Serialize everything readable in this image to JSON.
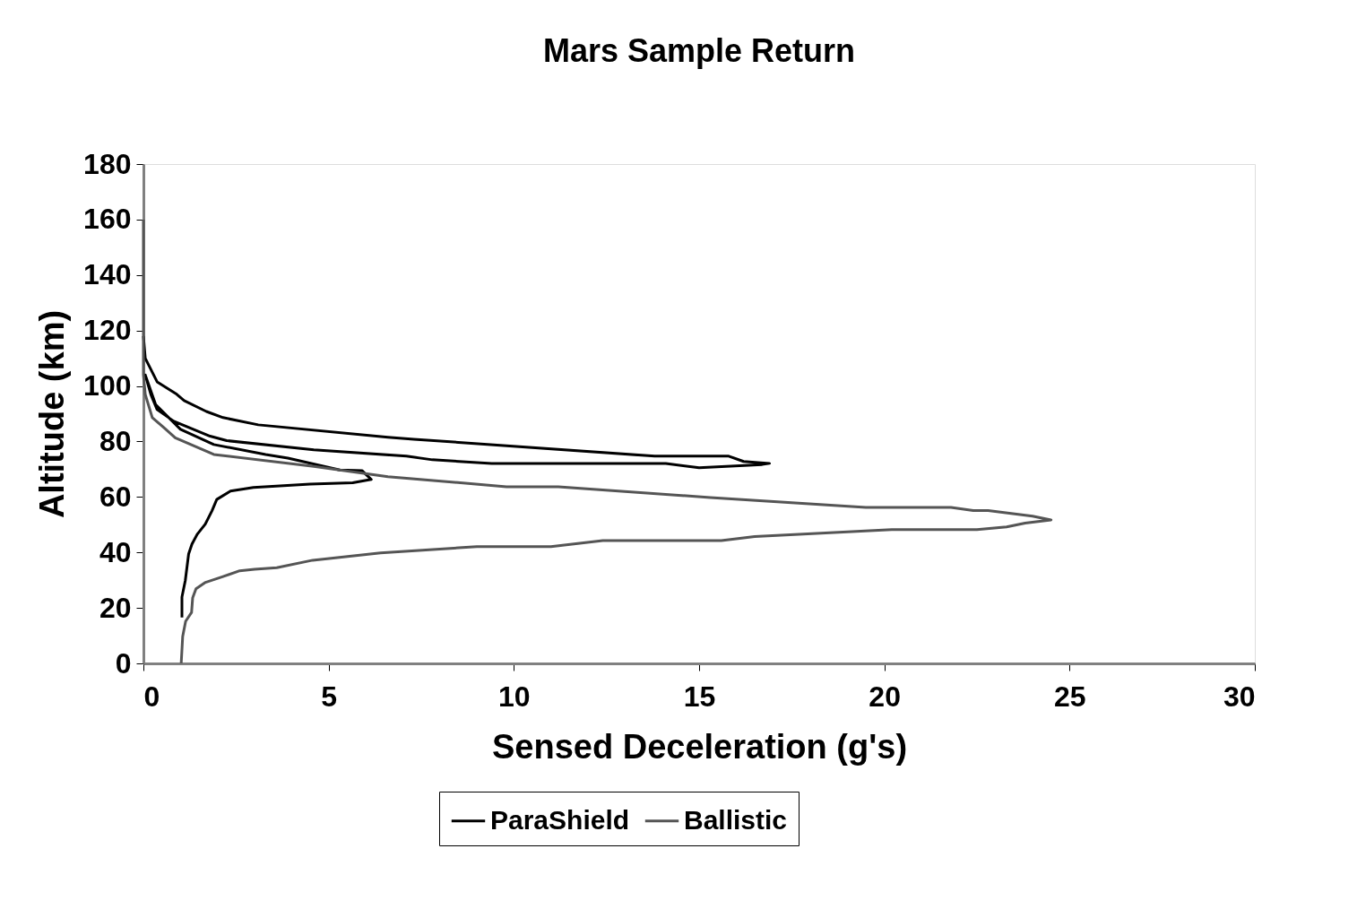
{
  "chart_data": {
    "type": "line",
    "title": "Mars   Sample   Return",
    "xlabel": "Sensed Deceleration (g's)",
    "ylabel": "Altitude (km)",
    "xlim": [
      0,
      30
    ],
    "xticks": [
      0,
      5,
      10,
      15,
      20,
      25,
      30
    ],
    "ylim": [
      0,
      180
    ],
    "yticks": [
      0,
      20,
      40,
      60,
      80,
      100,
      120,
      140,
      160,
      180
    ],
    "grid": false,
    "legend": "bottom",
    "line_style": "solid",
    "marker": "none",
    "series": [
      {
        "name": "ParaShield",
        "color": "#000000",
        "x": [
          0,
          0.05,
          0.37,
          0.9,
          1.1,
          1.7,
          2.15,
          3.1,
          6.6,
          7.3,
          13.8,
          15.8,
          16.2,
          16.9,
          16.7,
          15.0,
          14.1,
          9.4,
          7.8,
          7.1,
          4.6,
          2.25,
          1.8,
          0.82,
          0.37,
          0.2,
          0.05,
          0.33,
          1.0,
          1.9,
          3.3,
          3.9,
          5.3,
          5.9,
          6.15,
          5.65,
          4.5,
          2.97,
          2.35,
          1.98,
          1.85,
          1.67,
          1.45,
          1.31,
          1.22,
          1.13,
          1.04,
          1.04
        ],
        "values": [
          118,
          110,
          101.5,
          97,
          94.7,
          90.8,
          88.6,
          86,
          81.5,
          80.8,
          74.7,
          74.7,
          72.8,
          72.1,
          71.7,
          70.5,
          72.1,
          72.1,
          73.4,
          74.7,
          77,
          80.3,
          81.9,
          87.3,
          91.5,
          97,
          104,
          93.3,
          84.4,
          78.9,
          75.3,
          74,
          69.7,
          69.5,
          66.3,
          65.1,
          64.6,
          63.4,
          62.1,
          59.1,
          55,
          50.2,
          46.5,
          43,
          39.4,
          29.8,
          23.9,
          16.6
        ]
      },
      {
        "name": "Ballistic",
        "color": "#555555",
        "x": [
          0,
          0,
          0.05,
          0.24,
          0.55,
          0.86,
          1.9,
          4.6,
          6.6,
          9.8,
          11.2,
          15.3,
          19.5,
          21.8,
          22.4,
          22.8,
          24.0,
          24.5,
          23.8,
          23.3,
          22.5,
          20.2,
          16.5,
          15.6,
          12.4,
          11.0,
          9.0,
          6.4,
          4.57,
          3.6,
          3.0,
          2.6,
          2.15,
          1.66,
          1.42,
          1.33,
          1.3,
          1.14,
          1.06,
          1.02
        ],
        "values": [
          160,
          104,
          97,
          88.6,
          85,
          81.3,
          75.3,
          71,
          67.3,
          63.7,
          63.7,
          59.8,
          56.2,
          56.2,
          55.1,
          55.1,
          53.1,
          51.7,
          50.6,
          49.2,
          48.2,
          48.2,
          45.7,
          44.3,
          44.3,
          42.1,
          42.1,
          39.8,
          37.2,
          34.5,
          33.9,
          33.4,
          31.3,
          29.1,
          26.9,
          23.7,
          18.4,
          15.2,
          9.7,
          0
        ]
      }
    ]
  }
}
